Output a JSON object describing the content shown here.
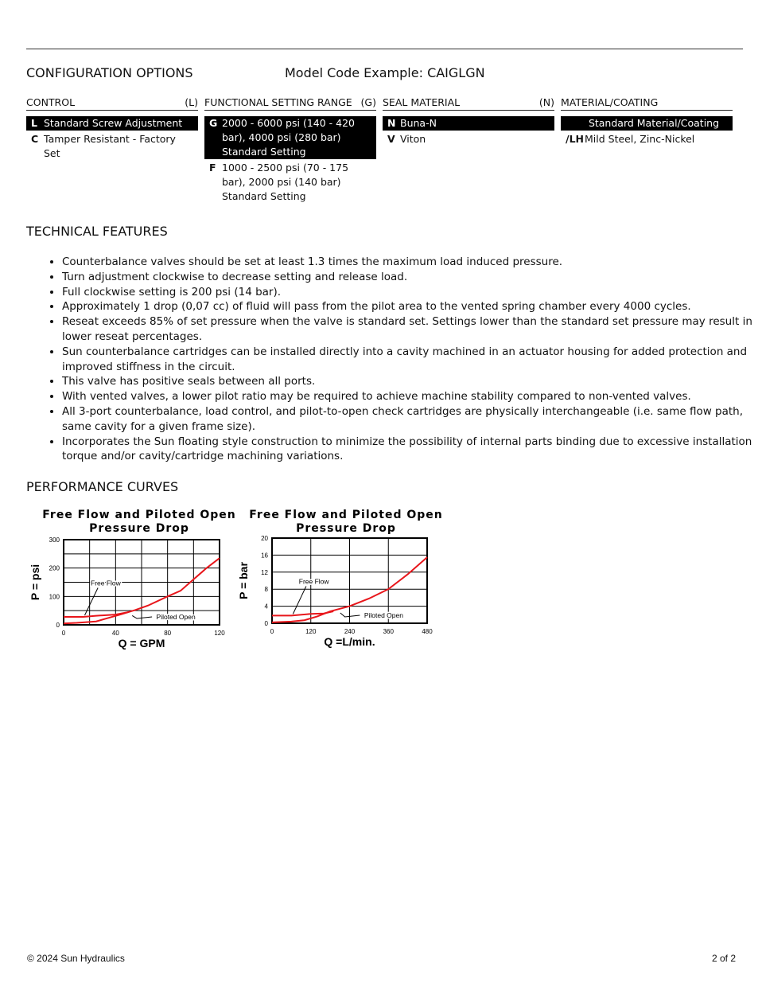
{
  "header": {
    "config_title": "CONFIGURATION OPTIONS",
    "model_code": "Model Code Example: CAIGLGN"
  },
  "columns": [
    {
      "title": "CONTROL",
      "code": "(L)",
      "options": [
        {
          "code": "L",
          "label": "Standard Screw Adjustment",
          "selected": true
        },
        {
          "code": "C",
          "label": "Tamper Resistant - Factory Set",
          "selected": false
        }
      ]
    },
    {
      "title": "FUNCTIONAL SETTING RANGE",
      "code": "(G)",
      "options": [
        {
          "code": "G",
          "label": "2000 - 6000 psi (140 - 420 bar), 4000 psi (280 bar) Standard Setting",
          "selected": true
        },
        {
          "code": "F",
          "label": "1000 - 2500 psi (70 - 175 bar), 2000 psi (140 bar) Standard Setting",
          "selected": false
        }
      ]
    },
    {
      "title": "SEAL MATERIAL",
      "code": "(N)",
      "options": [
        {
          "code": "N",
          "label": "Buna-N",
          "selected": true
        },
        {
          "code": "V",
          "label": "Viton",
          "selected": false
        }
      ]
    },
    {
      "title": "MATERIAL/COATING",
      "code": "",
      "options": [
        {
          "code": "",
          "label": "Standard Material/Coating",
          "selected": true
        },
        {
          "code": "/LH",
          "label": "Mild Steel, Zinc-Nickel",
          "selected": false
        }
      ]
    }
  ],
  "technical": {
    "title": "TECHNICAL FEATURES",
    "items": [
      "Counterbalance valves should be set at least 1.3 times the maximum load induced pressure.",
      "Turn adjustment clockwise to decrease setting and release load.",
      "Full clockwise setting is 200 psi (14 bar).",
      "Approximately 1 drop (0,07 cc) of fluid will pass from the pilot area to the vented spring chamber every 4000 cycles.",
      "Reseat exceeds 85% of set pressure when the valve is standard set. Settings lower than the standard set pressure may result in lower reseat percentages.",
      "Sun counterbalance cartridges can be installed directly into a cavity machined in an actuator housing for added protection and improved stiffness in the circuit.",
      "This valve has positive seals between all ports.",
      "With vented valves, a lower pilot ratio may be required to achieve machine stability compared to non-vented valves.",
      "All 3-port counterbalance, load control, and pilot-to-open check cartridges are physically interchangeable (i.e. same flow path, same cavity for a given frame size).",
      "Incorporates the Sun floating style construction to minimize the possibility of internal parts binding due to excessive installation torque and/or cavity/cartridge machining variations."
    ]
  },
  "performance": {
    "title": "PERFORMANCE CURVES"
  },
  "chart_data": [
    {
      "type": "line",
      "title": "Free Flow and Piloted Open Pressure Drop",
      "xlabel": "Q = GPM",
      "ylabel": "P = psi",
      "xlim": [
        0,
        120
      ],
      "ylim": [
        0,
        300
      ],
      "xticks": [
        0,
        40,
        80,
        120
      ],
      "yticks": [
        0,
        100,
        200,
        300
      ],
      "xgrid": [
        0,
        20,
        40,
        60,
        80,
        100,
        120
      ],
      "ygrid": [
        0,
        50,
        100,
        150,
        200,
        250,
        300
      ],
      "grid": true,
      "color": "#e8161b",
      "series": [
        {
          "name": "Free Flow",
          "x": [
            0,
            15,
            25,
            40,
            50
          ],
          "y": [
            28,
            28,
            32,
            36,
            45
          ]
        },
        {
          "name": "Piloted Open",
          "x": [
            0,
            10,
            25,
            35,
            45,
            55,
            65,
            80,
            90,
            100,
            110,
            120
          ],
          "y": [
            5,
            7,
            12,
            25,
            38,
            52,
            68,
            100,
            120,
            160,
            200,
            235
          ]
        }
      ],
      "annotations": [
        "Free Flow",
        "Piloted Open"
      ]
    },
    {
      "type": "line",
      "title": "Free Flow and Piloted Open Pressure Drop",
      "xlabel": "Q =L/min.",
      "ylabel": "P = bar",
      "xlim": [
        0,
        480
      ],
      "ylim": [
        0,
        20
      ],
      "xticks": [
        0,
        120,
        240,
        360,
        480
      ],
      "yticks": [
        0,
        4,
        8,
        12,
        16,
        20
      ],
      "xgrid": [
        0,
        120,
        240,
        360,
        480
      ],
      "ygrid": [
        0,
        4,
        8,
        12,
        16,
        20
      ],
      "grid": true,
      "color": "#e8161b",
      "series": [
        {
          "name": "Free Flow",
          "x": [
            0,
            60,
            120,
            160,
            190
          ],
          "y": [
            1.8,
            1.8,
            2.2,
            2.3,
            2.8
          ]
        },
        {
          "name": "Piloted Open",
          "x": [
            0,
            60,
            100,
            140,
            180,
            240,
            300,
            360,
            420,
            480
          ],
          "y": [
            0.2,
            0.4,
            0.7,
            1.6,
            2.8,
            4,
            5.8,
            8,
            11.5,
            15.5
          ]
        }
      ],
      "annotations": [
        "Free Flow",
        "Piloted Open"
      ]
    }
  ],
  "footer": {
    "copyright": "© 2024 Sun Hydraulics",
    "page": "2 of 2"
  }
}
